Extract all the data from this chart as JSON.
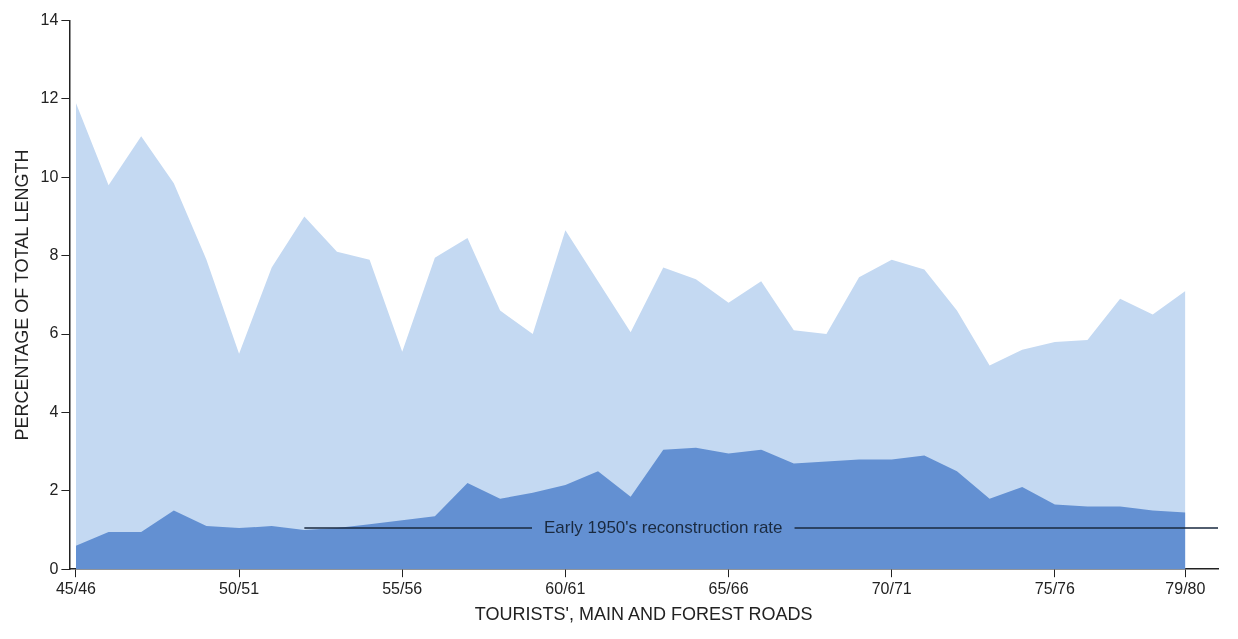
{
  "chart_data": {
    "type": "area",
    "xlabel": "TOURISTS', MAIN AND FOREST ROADS",
    "ylabel": "PERCENTAGE OF TOTAL LENGTH",
    "categories": [
      "45/46",
      null,
      null,
      null,
      null,
      "50/51",
      null,
      null,
      null,
      null,
      "55/56",
      null,
      null,
      null,
      null,
      "60/61",
      null,
      null,
      null,
      null,
      "65/66",
      null,
      null,
      null,
      null,
      "70/71",
      null,
      null,
      null,
      null,
      "75/76",
      null,
      null,
      null,
      "79/80"
    ],
    "series": [
      {
        "color": "#6390d2",
        "values": [
          0.6,
          0.95,
          0.95,
          1.5,
          1.1,
          1.05,
          1.1,
          1.0,
          1.05,
          1.15,
          1.25,
          1.35,
          2.2,
          1.8,
          1.95,
          2.15,
          2.5,
          1.85,
          3.05,
          3.1,
          2.95,
          3.05,
          2.7,
          2.75,
          2.8,
          2.8,
          2.9,
          2.5,
          1.8,
          2.1,
          1.65,
          1.6,
          1.6,
          1.5,
          1.45
        ]
      },
      {
        "color": "#c4d9f2",
        "values": [
          11.9,
          9.8,
          11.05,
          9.85,
          7.9,
          5.5,
          7.7,
          9.0,
          8.1,
          7.9,
          5.55,
          7.95,
          8.45,
          6.6,
          6.0,
          8.65,
          7.35,
          6.05,
          7.7,
          7.4,
          6.8,
          7.35,
          6.1,
          6.0,
          7.45,
          7.9,
          7.65,
          6.6,
          5.2,
          5.6,
          5.8,
          5.85,
          6.9,
          6.5,
          7.1
        ]
      }
    ],
    "ylim": [
      0,
      14
    ],
    "yticks": [
      0,
      2,
      4,
      6,
      8,
      10,
      12,
      14
    ],
    "ref_lines": [
      {
        "axis": "y",
        "value": 1.05,
        "label": "Early 1950's reconstruction rate",
        "color": "#1a2a40"
      }
    ],
    "grid": false,
    "legend": false
  }
}
